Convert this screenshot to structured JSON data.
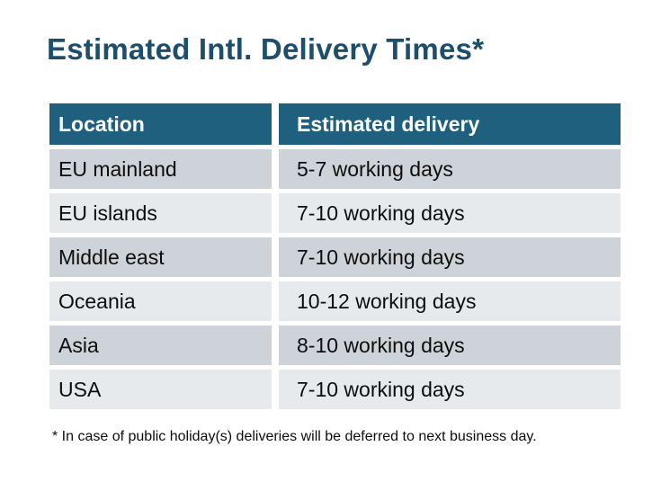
{
  "title": "Estimated Intl. Delivery Times*",
  "footnote": "* In case of public holiday(s) deliveries will be deferred to next business day.",
  "colors": {
    "title": "#1d4e6b",
    "header_bg": "#20607f",
    "header_text": "#ffffff",
    "row_odd_bg": "#ced2d9",
    "row_even_bg": "#e7eaed",
    "body_text": "#0d0d0d",
    "background": "#ffffff"
  },
  "table": {
    "columns": [
      "Location",
      "Estimated delivery"
    ],
    "rows": [
      {
        "location": "EU mainland",
        "delivery": "5-7 working days"
      },
      {
        "location": "EU islands",
        "delivery": "7-10 working days"
      },
      {
        "location": "Middle east",
        "delivery": "7-10 working days"
      },
      {
        "location": "Oceania",
        "delivery": "10-12 working days"
      },
      {
        "location": "Asia",
        "delivery": "8-10 working days"
      },
      {
        "location": "USA",
        "delivery": "7-10 working days"
      }
    ]
  },
  "chart_data": {
    "type": "table",
    "title": "Estimated Intl. Delivery Times*",
    "columns": [
      "Location",
      "Estimated delivery"
    ],
    "rows": [
      [
        "EU mainland",
        "5-7 working days"
      ],
      [
        "EU islands",
        "7-10 working days"
      ],
      [
        "Middle east",
        "7-10 working days"
      ],
      [
        "Oceania",
        "10-12 working days"
      ],
      [
        "Asia",
        "8-10 working days"
      ],
      [
        "USA",
        "7-10 working days"
      ]
    ],
    "footnote": "* In case of public holiday(s) deliveries will be deferred to next business day."
  }
}
